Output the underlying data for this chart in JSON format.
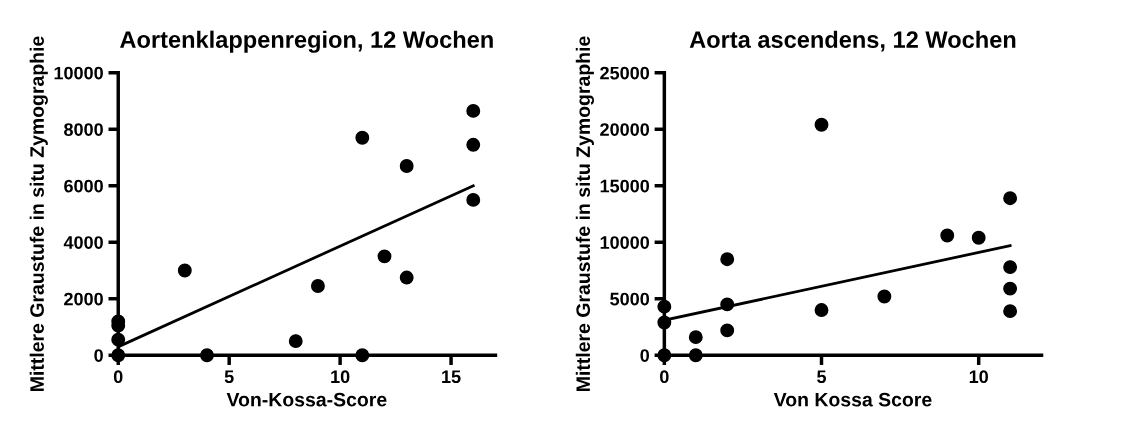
{
  "chart_data": [
    {
      "type": "scatter",
      "title": "Aortenklappenregion, 12 Wochen",
      "xlabel": "Von-Kossa-Score",
      "ylabel": "Mittlere Graustufe in situ Zymographie",
      "xlim": [
        0,
        17
      ],
      "ylim": [
        0,
        10000
      ],
      "xticks": [
        0,
        5,
        10,
        15
      ],
      "yticks": [
        0,
        2000,
        4000,
        6000,
        8000,
        10000
      ],
      "grid": false,
      "legend": false,
      "series": [
        {
          "marker": "circle",
          "color": "#000000",
          "x": [
            0,
            0,
            0,
            0,
            3,
            4,
            8,
            9,
            11,
            11,
            12,
            13,
            13,
            16,
            16,
            16
          ],
          "values": [
            0,
            550,
            1050,
            1200,
            3000,
            0,
            500,
            2450,
            7700,
            0,
            3500,
            6700,
            2750,
            8650,
            7450,
            5500
          ]
        },
        {
          "type": "line",
          "marker": "none",
          "color": "#000000",
          "x": [
            0,
            16
          ],
          "values": [
            300,
            6000
          ]
        }
      ]
    },
    {
      "type": "scatter",
      "title": "Aorta ascendens, 12 Wochen",
      "xlabel": "Von Kossa Score",
      "ylabel": "Mittlere Graustufe in situ Zymographie",
      "xlim": [
        0,
        12
      ],
      "ylim": [
        0,
        25000
      ],
      "xticks": [
        0,
        5,
        10
      ],
      "yticks": [
        0,
        5000,
        10000,
        15000,
        20000,
        25000
      ],
      "grid": false,
      "legend": false,
      "series": [
        {
          "marker": "circle",
          "color": "#000000",
          "x": [
            0,
            0,
            0,
            1,
            1,
            2,
            2,
            2,
            5,
            5,
            7,
            9,
            10,
            11,
            11,
            11,
            11
          ],
          "values": [
            0,
            2900,
            4300,
            1600,
            0,
            8500,
            4500,
            2200,
            20400,
            4000,
            5200,
            10600,
            10400,
            13900,
            7800,
            5900,
            3900
          ]
        },
        {
          "type": "line",
          "marker": "none",
          "color": "#000000",
          "x": [
            0,
            11
          ],
          "values": [
            3100,
            9700
          ]
        }
      ]
    }
  ]
}
